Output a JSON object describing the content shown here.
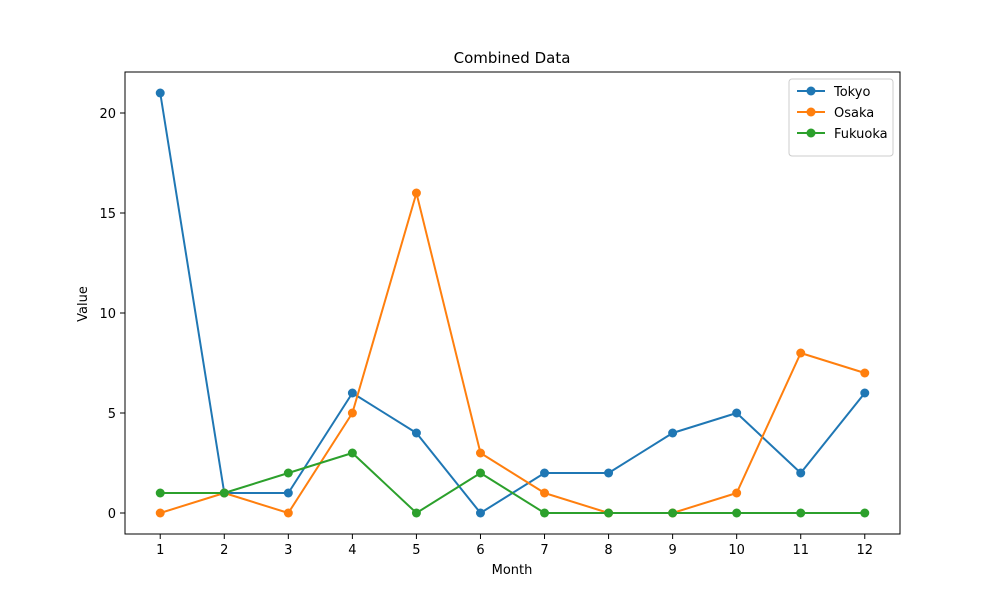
{
  "chart_data": {
    "type": "line",
    "title": "Combined Data",
    "xlabel": "Month",
    "ylabel": "Value",
    "x": [
      1,
      2,
      3,
      4,
      5,
      6,
      7,
      8,
      9,
      10,
      11,
      12
    ],
    "xticks": [
      "1",
      "2",
      "3",
      "4",
      "5",
      "6",
      "7",
      "8",
      "9",
      "10",
      "11",
      "12"
    ],
    "yticks": [
      "0",
      "5",
      "10",
      "15",
      "20"
    ],
    "xlim": [
      0.45,
      12.55
    ],
    "ylim": [
      -1.05,
      22.05
    ],
    "grid": false,
    "legend_position": "top-right",
    "markers": true,
    "series": [
      {
        "name": "Tokyo",
        "color": "#1f77b4",
        "values": [
          21,
          1,
          1,
          6,
          4,
          0,
          2,
          2,
          4,
          5,
          2,
          6
        ]
      },
      {
        "name": "Osaka",
        "color": "#ff7f0e",
        "values": [
          0,
          1,
          0,
          5,
          16,
          3,
          1,
          0,
          0,
          1,
          8,
          7
        ]
      },
      {
        "name": "Fukuoka",
        "color": "#2ca02c",
        "values": [
          1,
          1,
          2,
          3,
          0,
          2,
          0,
          0,
          0,
          0,
          0,
          0
        ]
      }
    ]
  }
}
